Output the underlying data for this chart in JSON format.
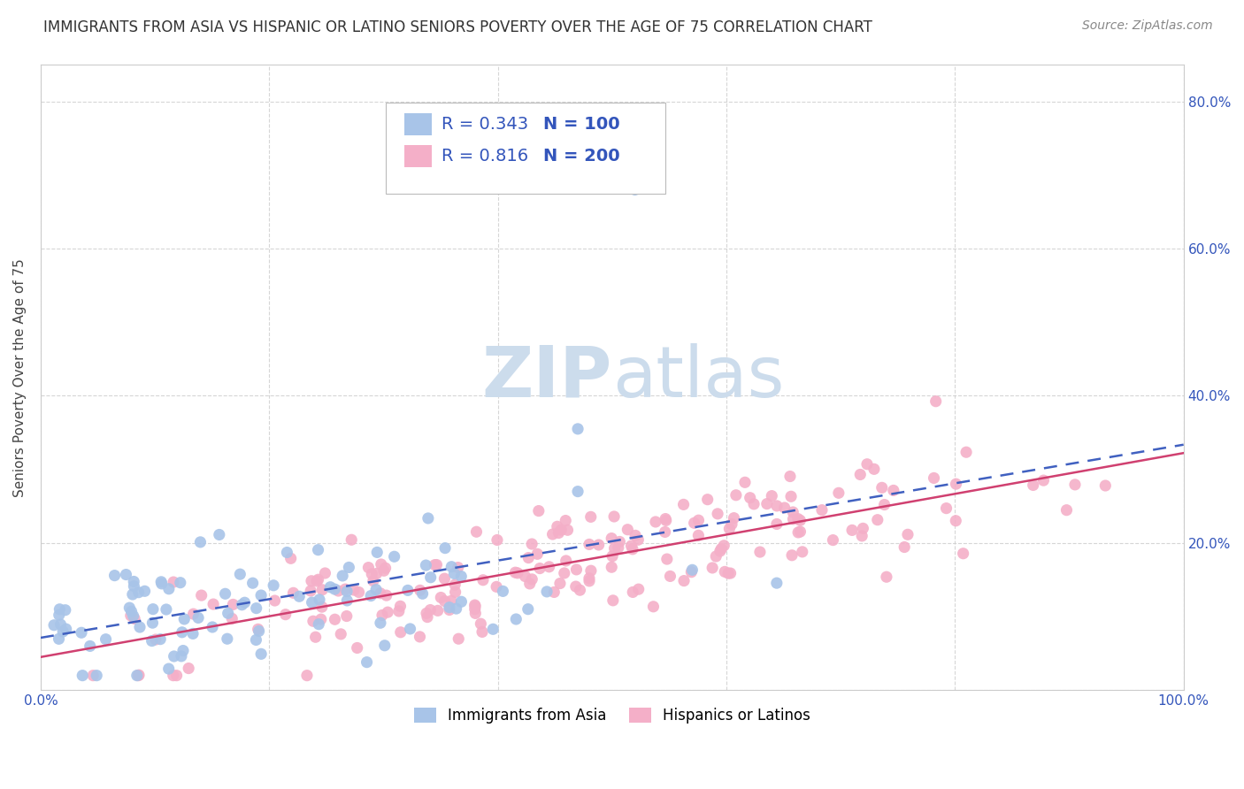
{
  "title": "IMMIGRANTS FROM ASIA VS HISPANIC OR LATINO SENIORS POVERTY OVER THE AGE OF 75 CORRELATION CHART",
  "source": "Source: ZipAtlas.com",
  "ylabel": "Seniors Poverty Over the Age of 75",
  "xlim": [
    0,
    1.0
  ],
  "ylim": [
    0,
    0.85
  ],
  "xticks": [
    0.0,
    0.2,
    0.4,
    0.6,
    0.8,
    1.0
  ],
  "yticks": [
    0.0,
    0.2,
    0.4,
    0.6,
    0.8
  ],
  "series1_color": "#a8c4e8",
  "series2_color": "#f4afc8",
  "series1_line_color": "#4060c0",
  "series2_line_color": "#d04070",
  "series1_label": "Immigrants from Asia",
  "series2_label": "Hispanics or Latinos",
  "legend_R1": "0.343",
  "legend_N1": "100",
  "legend_R2": "0.816",
  "legend_N2": "200",
  "watermark_color": "#ccdcec",
  "background_color": "#ffffff",
  "grid_color": "#cccccc",
  "blue_text": "#3355bb",
  "title_fontsize": 12,
  "axis_label_fontsize": 11,
  "tick_fontsize": 11,
  "legend_fontsize": 14,
  "source_fontsize": 10
}
